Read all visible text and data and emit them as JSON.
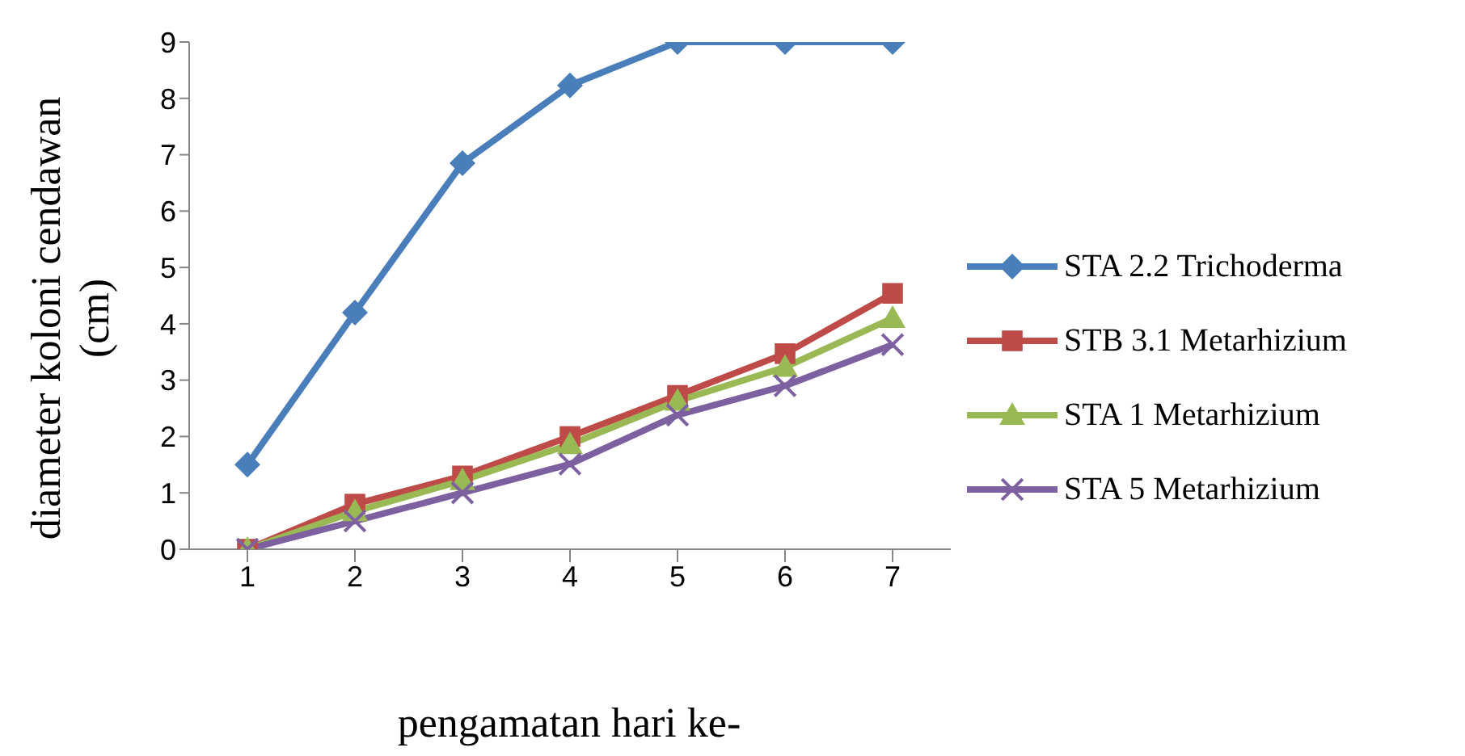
{
  "chart_data": {
    "type": "line",
    "xlabel": "pengamatan hari ke-",
    "ylabel": "diameter koloni cendawan (cm)",
    "categories": [
      "1",
      "2",
      "3",
      "4",
      "5",
      "6",
      "7"
    ],
    "series": [
      {
        "name": "STA 2.2 Trichoderma",
        "color": "#4a7ebb",
        "marker": "diamond",
        "values": [
          1.5,
          4.2,
          6.85,
          8.23,
          9,
          9,
          9
        ]
      },
      {
        "name": "STB 3.1 Metarhizium",
        "color": "#be4b48",
        "marker": "square",
        "values": [
          0,
          0.8,
          1.3,
          2.0,
          2.73,
          3.47,
          4.54
        ]
      },
      {
        "name": "STA 1 Metarhizium",
        "color": "#98b954",
        "marker": "triangle",
        "values": [
          0,
          0.67,
          1.22,
          1.86,
          2.63,
          3.23,
          4.1
        ]
      },
      {
        "name": "STA 5 Metarhizium",
        "color": "#7d60a0",
        "marker": "cross",
        "values": [
          0,
          0.5,
          1.0,
          1.51,
          2.38,
          2.9,
          3.63
        ]
      }
    ],
    "ylim": [
      0,
      9
    ],
    "yticks": [
      0,
      1,
      2,
      3,
      4,
      5,
      6,
      7,
      8,
      9
    ],
    "grid": false,
    "legend": "right",
    "line_style": "solid"
  }
}
